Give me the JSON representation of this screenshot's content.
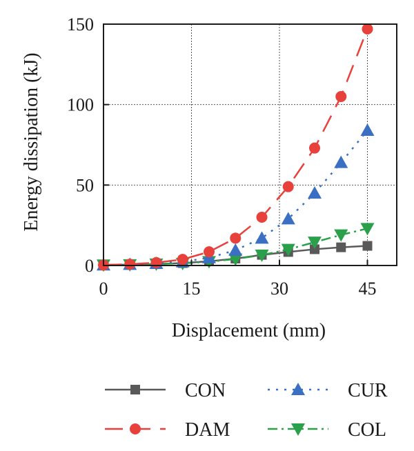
{
  "chart_data": {
    "type": "line",
    "title": "",
    "xlabel": "Displacement (mm)",
    "ylabel": "Energy dissipation (kJ)",
    "xlim": [
      0,
      50
    ],
    "ylim": [
      0,
      150
    ],
    "xticks": [
      0,
      15,
      30,
      45
    ],
    "yticks": [
      0,
      50,
      100,
      150
    ],
    "grid": true,
    "legend_position": "bottom",
    "series": [
      {
        "name": "CON",
        "color": "#595959",
        "marker": "square",
        "line_style": "solid",
        "x": [
          0,
          4.5,
          9,
          13.5,
          18,
          22.5,
          27,
          31.5,
          36,
          40.5,
          45
        ],
        "y": [
          0.3,
          0.5,
          0.9,
          1.5,
          2.6,
          4.3,
          6.6,
          8.4,
          10.1,
          11.3,
          12.2
        ]
      },
      {
        "name": "DAM",
        "color": "#e8413c",
        "marker": "circle",
        "line_style": "dashed",
        "x": [
          0,
          4.5,
          9,
          13.5,
          18,
          22.5,
          27,
          31.5,
          36,
          40.5,
          45
        ],
        "y": [
          0.3,
          0.8,
          1.8,
          3.8,
          8.5,
          17,
          30,
          49,
          73,
          105,
          147
        ]
      },
      {
        "name": "CUR",
        "color": "#3a6fc4",
        "marker": "triangle-up",
        "line_style": "dotted",
        "x": [
          0,
          4.5,
          9,
          13.5,
          18,
          22.5,
          27,
          31.5,
          36,
          40.5,
          45
        ],
        "y": [
          0.3,
          0.7,
          1.3,
          2.3,
          4.8,
          9.5,
          17,
          29,
          45,
          64,
          84
        ]
      },
      {
        "name": "COL",
        "color": "#2aa04a",
        "marker": "triangle-down",
        "line_style": "dashdot",
        "x": [
          0,
          4.5,
          9,
          13.5,
          18,
          22.5,
          27,
          31.5,
          36,
          40.5,
          45
        ],
        "y": [
          0.3,
          0.5,
          0.9,
          1.3,
          2.4,
          4,
          6.5,
          10,
          14.5,
          19,
          23
        ]
      }
    ]
  }
}
